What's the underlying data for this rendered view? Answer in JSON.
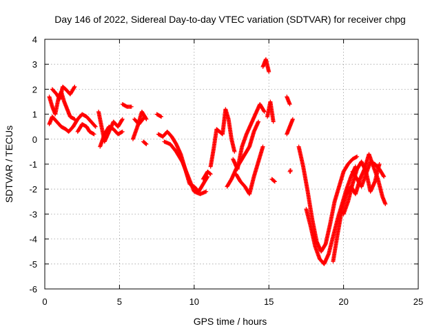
{
  "chart_data": {
    "type": "scatter",
    "title": "Day 146 of 2022, Sidereal Day-to-day VTEC variation (SDTVAR) for receiver chpg",
    "xlabel": "GPS time / hours",
    "ylabel": "SDTVAR / TECUs",
    "xlim": [
      0,
      25
    ],
    "ylim": [
      -6,
      4
    ],
    "xticks": [
      0,
      5,
      10,
      15,
      20,
      25
    ],
    "yticks": [
      -6,
      -5,
      -4,
      -3,
      -2,
      -1,
      0,
      1,
      2,
      3,
      4
    ],
    "grid": true,
    "marker": "+",
    "color": "#ff0000",
    "series": [
      {
        "name": "SDTVAR",
        "segments": [
          {
            "x": [
              0.3,
              0.5,
              0.7,
              0.9,
              1.1,
              1.3,
              1.5,
              1.7,
              2.0
            ],
            "y": [
              1.7,
              1.3,
              1.0,
              1.6,
              1.9,
              1.5,
              1.2,
              0.9,
              0.8
            ]
          },
          {
            "x": [
              0.3,
              0.5,
              0.8,
              1.1,
              1.4,
              1.6,
              1.9
            ],
            "y": [
              0.6,
              0.9,
              0.7,
              0.5,
              0.4,
              0.3,
              0.5
            ]
          },
          {
            "x": [
              0.5,
              0.8,
              1.0,
              1.2,
              1.4,
              1.7,
              2.0
            ],
            "y": [
              2.0,
              1.8,
              1.6,
              2.1,
              2.0,
              1.8,
              2.1
            ]
          },
          {
            "x": [
              1.9,
              2.2,
              2.5,
              2.8,
              3.1,
              3.4
            ],
            "y": [
              0.5,
              0.8,
              1.0,
              0.9,
              0.7,
              0.5
            ]
          },
          {
            "x": [
              2.2,
              2.5,
              2.8,
              3.0,
              3.3
            ],
            "y": [
              0.3,
              0.6,
              0.5,
              0.3,
              0.2
            ]
          },
          {
            "x": [
              3.6,
              3.8,
              4.0,
              4.3,
              4.6,
              4.9,
              5.2
            ],
            "y": [
              1.1,
              0.5,
              -0.1,
              0.3,
              0.7,
              0.5,
              0.8
            ]
          },
          {
            "x": [
              3.7,
              4.0,
              4.3,
              4.6,
              4.9,
              5.2
            ],
            "y": [
              -0.3,
              0.2,
              0.5,
              0.4,
              0.2,
              0.3
            ]
          },
          {
            "x": [
              5.2,
              5.5,
              5.8
            ],
            "y": [
              1.4,
              1.3,
              1.3
            ]
          },
          {
            "x": [
              5.9,
              6.2,
              6.5,
              6.8
            ],
            "y": [
              0.0,
              0.5,
              1.1,
              0.8
            ]
          },
          {
            "x": [
              6.0,
              6.3,
              6.7
            ],
            "y": [
              0.8,
              0.6,
              0.9
            ]
          },
          {
            "x": [
              6.6,
              6.8
            ],
            "y": [
              -0.1,
              -0.2
            ]
          },
          {
            "x": [
              7.5,
              7.8
            ],
            "y": [
              1.0,
              0.9
            ]
          },
          {
            "x": [
              7.6,
              7.9,
              8.2,
              8.5,
              8.8,
              9.1,
              9.4,
              9.7,
              10.0,
              10.3,
              10.6,
              10.9
            ],
            "y": [
              0.2,
              0.1,
              0.3,
              0.1,
              -0.2,
              -0.6,
              -1.2,
              -1.8,
              -1.9,
              -2.1,
              -1.8,
              -1.5
            ]
          },
          {
            "x": [
              8.0,
              8.4,
              8.8,
              9.2,
              9.6,
              10.0,
              10.4,
              10.8
            ],
            "y": [
              -0.1,
              -0.2,
              -0.5,
              -0.9,
              -1.5,
              -2.1,
              -2.2,
              -2.1
            ]
          },
          {
            "x": [
              10.6,
              10.9,
              11.1
            ],
            "y": [
              -1.6,
              -1.3,
              -1.4
            ]
          },
          {
            "x": [
              11.1,
              11.3,
              11.5,
              11.7,
              11.9,
              12.1,
              12.3,
              12.5,
              12.7
            ],
            "y": [
              -1.1,
              -0.4,
              0.4,
              0.3,
              0.2,
              1.2,
              0.8,
              0.0,
              -0.5
            ]
          },
          {
            "x": [
              12.2,
              12.5,
              12.8,
              13.1,
              13.4,
              13.7,
              14.0,
              14.3
            ],
            "y": [
              -1.9,
              -1.6,
              -1.2,
              -0.9,
              -0.6,
              -0.3,
              0.3,
              0.7
            ]
          },
          {
            "x": [
              12.8,
              13.1,
              13.4,
              13.7,
              14.0,
              14.3,
              14.6
            ],
            "y": [
              -1.4,
              -1.7,
              -1.9,
              -2.2,
              -1.5,
              -0.9,
              -0.3
            ]
          },
          {
            "x": [
              12.6,
              12.9,
              13.2,
              13.5,
              13.8,
              14.1,
              14.4,
              14.7
            ],
            "y": [
              -0.8,
              -1.2,
              -0.3,
              0.2,
              0.6,
              1.0,
              1.4,
              1.1
            ]
          },
          {
            "x": [
              14.6,
              14.8,
              15.0
            ],
            "y": [
              2.9,
              3.2,
              2.7
            ]
          },
          {
            "x": [
              14.9,
              15.1,
              15.3
            ],
            "y": [
              0.9,
              1.5,
              0.7
            ]
          },
          {
            "x": [
              15.2,
              15.4
            ],
            "y": [
              -1.6,
              -1.7
            ]
          },
          {
            "x": [
              16.2,
              16.4
            ],
            "y": [
              1.7,
              1.4
            ]
          },
          {
            "x": [
              16.2,
              16.4,
              16.6
            ],
            "y": [
              0.2,
              0.5,
              0.8
            ]
          },
          {
            "x": [
              16.4
            ],
            "y": [
              -1.3
            ]
          },
          {
            "x": [
              17.0,
              17.3,
              17.6,
              17.9,
              18.2,
              18.5,
              18.8,
              19.1,
              19.4,
              19.7,
              20.0,
              20.3,
              20.6,
              20.9
            ],
            "y": [
              -0.3,
              -1.1,
              -2.1,
              -3.2,
              -4.1,
              -4.5,
              -4.2,
              -3.4,
              -2.5,
              -1.9,
              -1.3,
              -1.0,
              -0.8,
              -0.7
            ]
          },
          {
            "x": [
              17.5,
              17.8,
              18.1,
              18.4,
              18.7,
              19.0,
              19.3,
              19.6,
              19.9,
              20.2,
              20.5,
              20.8
            ],
            "y": [
              -2.8,
              -3.5,
              -4.3,
              -4.8,
              -5.0,
              -4.6,
              -3.9,
              -3.2,
              -2.6,
              -2.0,
              -1.5,
              -1.1
            ]
          },
          {
            "x": [
              19.3,
              19.6,
              19.9,
              20.2,
              20.5,
              20.8,
              21.1,
              21.4,
              21.7,
              22.0,
              22.3,
              22.6,
              22.8
            ],
            "y": [
              -4.9,
              -3.8,
              -2.8,
              -2.2,
              -1.9,
              -2.2,
              -1.6,
              -1.2,
              -0.6,
              -1.1,
              -1.6,
              -2.3,
              -2.6
            ]
          },
          {
            "x": [
              20.6,
              20.9,
              21.2,
              21.5,
              21.8,
              22.1,
              22.4,
              22.7
            ],
            "y": [
              -1.3,
              -1.6,
              -1.9,
              -1.4,
              -0.9,
              -1.0,
              -1.2,
              -1.5
            ]
          },
          {
            "x": [
              20.0,
              20.3,
              20.6,
              20.9,
              21.2,
              21.5,
              21.8,
              22.1,
              22.4
            ],
            "y": [
              -3.0,
              -2.5,
              -1.8,
              -1.2,
              -0.9,
              -1.3,
              -2.1,
              -1.7,
              -1.0
            ]
          }
        ]
      }
    ]
  }
}
